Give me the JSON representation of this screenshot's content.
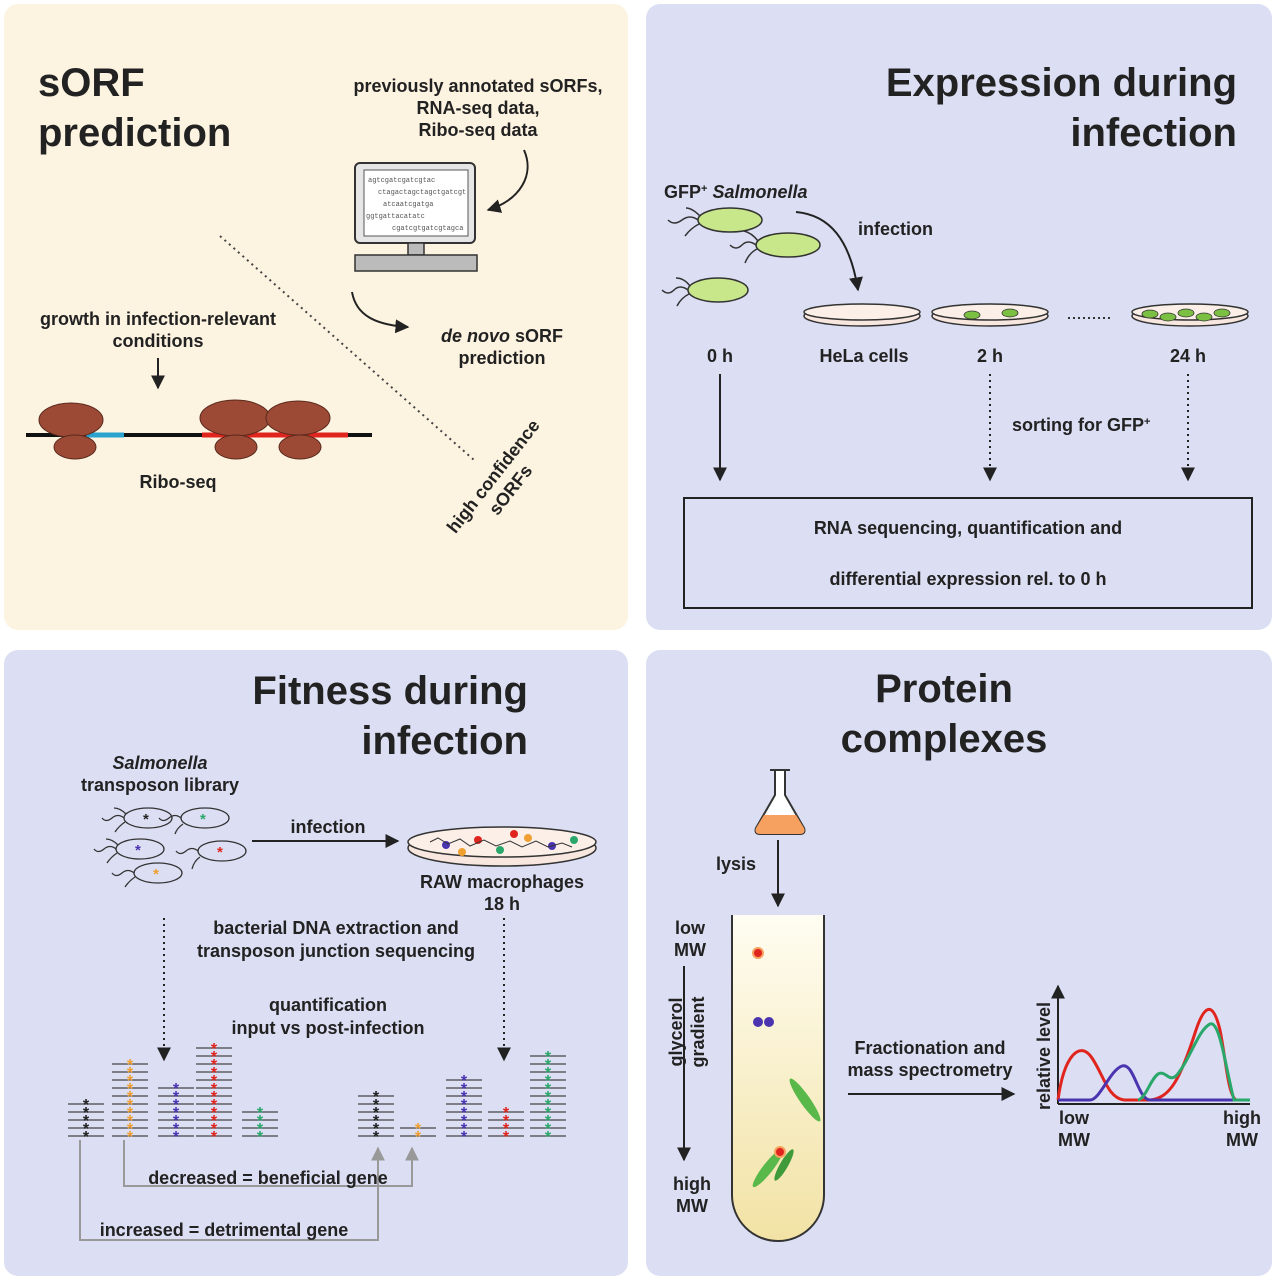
{
  "colors": {
    "panel_beige": "#fdf3e1",
    "panel_lavender": "#dcdff3",
    "ribosome": "#9c4a36",
    "blue_orf": "#2aa3d1",
    "red_orf": "#e0251f",
    "bacteria_green": "#c8e68a",
    "curve_red": "#e0251f",
    "curve_blue": "#4b34b0",
    "curve_green": "#2aa86b"
  },
  "panel1": {
    "title_line1": "sORF",
    "title_line2": "prediction",
    "inputs_line1": "previously annotated sORFs,",
    "inputs_line2": "RNA-seq data,",
    "inputs_line3": "Ribo-seq data",
    "code_lines": [
      "agtcgatcgatcgtac",
      "ctagactagctagctgatcgt",
      "atcaatcgatga",
      "ggtgattacatatc",
      "cgatcgtgatcgtagca"
    ],
    "denovo_italic": "de novo",
    "denovo_rest": " sORF",
    "denovo_line2": "prediction",
    "growth_line1": "growth in infection-relevant",
    "growth_line2": "conditions",
    "riboseq": "Ribo-seq",
    "hc_line1": "high confidence",
    "hc_line2": "sORFs"
  },
  "panel2": {
    "title_line1": "Expression during",
    "title_line2": "infection",
    "gfp_prefix": "GFP",
    "gfp_sup": "+",
    "salmonella": " Salmonella",
    "infection": "infection",
    "t0": "0 h",
    "hela": "HeLa cells",
    "t2": "2 h",
    "t24": "24 h",
    "sorting": "sorting for GFP",
    "sorting_sup": "+",
    "box_line1": "RNA sequencing, quantification and",
    "box_line2": "differential expression rel. to 0 h"
  },
  "panel3": {
    "title_line1": "Fitness during",
    "title_line2": "infection",
    "library_line1": "Salmonella",
    "library_line2": "transposon library",
    "infection": "infection",
    "raw_line1": "RAW macrophages",
    "raw_line2": "18 h",
    "dna_line1": "bacterial DNA extraction and",
    "dna_line2": "transposon junction sequencing",
    "quant_line1": "quantification",
    "quant_line2": "input vs post-infection",
    "decreased": "decreased = beneficial gene",
    "increased": "increased = detrimental gene"
  },
  "panel4": {
    "title_line1": "Protein",
    "title_line2": "complexes",
    "lysis": "lysis",
    "low_mw_1": "low",
    "low_mw_2": "MW",
    "glycerol_1": "glycerol",
    "glycerol_2": "gradient",
    "high_mw_1": "high",
    "high_mw_2": "MW",
    "fraction_line1": "Fractionation and",
    "fraction_line2": "mass spectrometry",
    "rel_level": "relative level",
    "ax_low_1": "low",
    "ax_low_2": "MW",
    "ax_high_1": "high",
    "ax_high_2": "MW"
  }
}
